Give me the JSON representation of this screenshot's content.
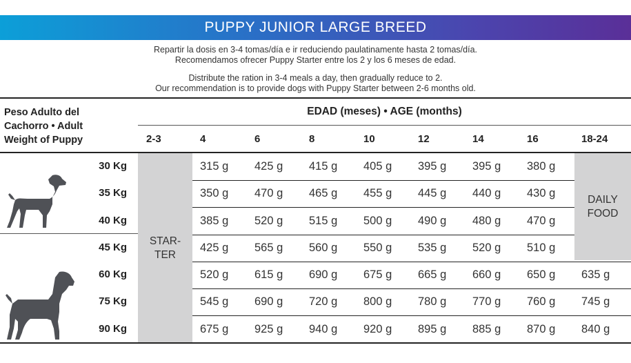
{
  "title": "PUPPY JUNIOR LARGE BREED",
  "intro": {
    "es_line1": "Repartir la dosis en 3-4 tomas/día e ir reduciendo paulatinamente hasta 2 tomas/día.",
    "es_line2": "Recomendamos ofrecer Puppy Starter entre los 2 y los 6 meses de edad.",
    "en_line1": "Distribute the ration in 3-4 meals a day, then gradually reduce to 2.",
    "en_line2": "Our recommendation is to provide dogs with Puppy Starter between 2-6 months old."
  },
  "table": {
    "weight_header": [
      "Peso Adulto del",
      "Cachorro • Adult",
      "Weight of Puppy"
    ],
    "age_header": "EDAD (meses) • AGE (months)",
    "ages": [
      "2-3",
      "4",
      "6",
      "8",
      "10",
      "12",
      "14",
      "16",
      "18-24"
    ],
    "starter_label": [
      "STAR-",
      "TER"
    ],
    "daily_label": [
      "DAILY",
      "FOOD"
    ],
    "rows": [
      {
        "weight": "30 Kg",
        "values": [
          "315 g",
          "425 g",
          "415 g",
          "405 g",
          "395 g",
          "395 g",
          "380 g"
        ],
        "last": ""
      },
      {
        "weight": "35 Kg",
        "values": [
          "350 g",
          "470 g",
          "465 g",
          "455 g",
          "445 g",
          "440 g",
          "430 g"
        ],
        "last": ""
      },
      {
        "weight": "40 Kg",
        "values": [
          "385 g",
          "520 g",
          "515 g",
          "500 g",
          "490 g",
          "480 g",
          "470 g"
        ],
        "last": ""
      },
      {
        "weight": "45 Kg",
        "values": [
          "425 g",
          "565 g",
          "560 g",
          "550 g",
          "535 g",
          "520 g",
          "510 g"
        ],
        "last": ""
      },
      {
        "weight": "60 Kg",
        "values": [
          "520 g",
          "615 g",
          "690 g",
          "675 g",
          "665 g",
          "660 g",
          "650 g"
        ],
        "last": "635 g"
      },
      {
        "weight": "75 Kg",
        "values": [
          "545 g",
          "690 g",
          "720 g",
          "800 g",
          "780 g",
          "770 g",
          "760 g"
        ],
        "last": "745 g"
      },
      {
        "weight": "90 Kg",
        "values": [
          "675 g",
          "925 g",
          "940 g",
          "920 g",
          "895 g",
          "885 g",
          "870 g"
        ],
        "last": "840 g"
      }
    ]
  },
  "colors": {
    "banner_start": "#0c9fd8",
    "banner_end": "#5a2f98",
    "gray_column": "#d3d3d4",
    "dog_silhouette": "#4f5156"
  },
  "icons": [
    "dog-silhouette-medium-icon",
    "dog-silhouette-large-icon"
  ]
}
